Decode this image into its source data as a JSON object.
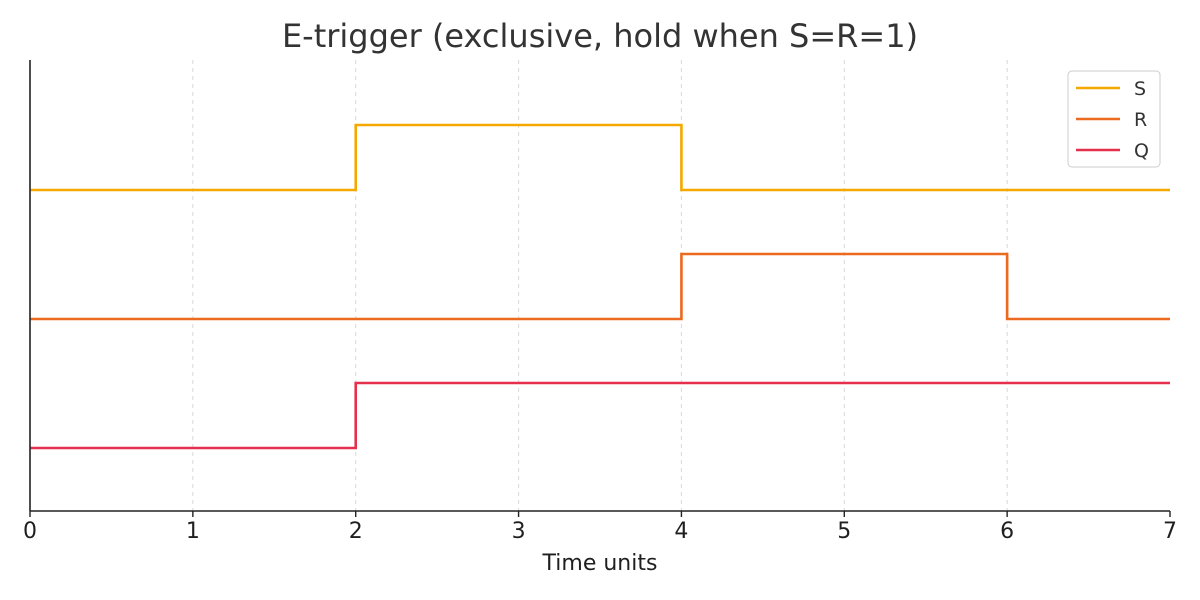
{
  "chart_data": {
    "type": "line",
    "title": "E-trigger (exclusive, hold when S=R=1)",
    "xlabel": "Time units",
    "ylabel": "",
    "xlim": [
      0,
      7
    ],
    "x_ticks": [
      "0",
      "1",
      "2",
      "3",
      "4",
      "5",
      "6",
      "7"
    ],
    "grid": "vertical dashed",
    "legend_position": "top-right",
    "step": true,
    "series": [
      {
        "name": "S",
        "color": "#f5a800",
        "x": [
          0,
          2,
          4,
          7
        ],
        "values": [
          0,
          1,
          0,
          0
        ]
      },
      {
        "name": "R",
        "color": "#ec6a1f",
        "x": [
          0,
          4,
          6,
          7
        ],
        "values": [
          0,
          1,
          0,
          0
        ]
      },
      {
        "name": "Q",
        "color": "#e5304d",
        "x": [
          0,
          2,
          7
        ],
        "values": [
          0,
          1,
          1
        ]
      }
    ]
  }
}
